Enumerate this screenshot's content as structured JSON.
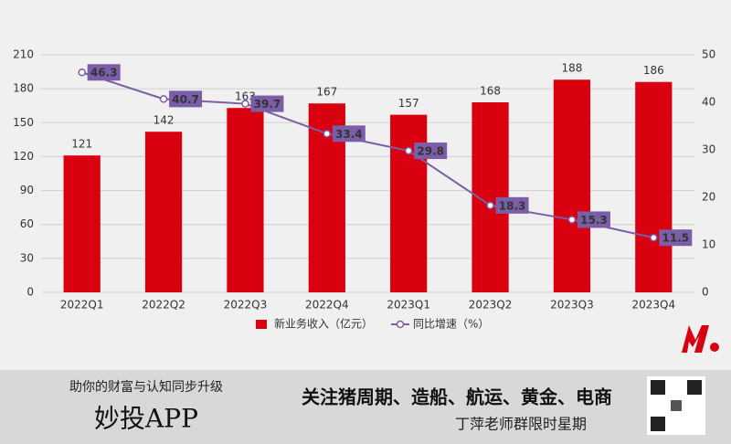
{
  "chart_data": {
    "type": "combo",
    "categories": [
      "2022Q1",
      "2022Q2",
      "2022Q3",
      "2022Q4",
      "2023Q1",
      "2023Q2",
      "2023Q3",
      "2023Q4"
    ],
    "series": [
      {
        "name": "新业务收入（亿元）",
        "type": "bar",
        "color": "#d9000f",
        "values": [
          121,
          142,
          163,
          167,
          157,
          168,
          188,
          186
        ]
      },
      {
        "name": "同比增速（%）",
        "type": "line",
        "axis": "y2",
        "color": "#7b5ea7",
        "values": [
          46.3,
          40.7,
          39.7,
          33.4,
          29.8,
          18.3,
          15.3,
          11.5
        ]
      }
    ],
    "ylim": [
      0,
      210
    ],
    "yticks": [
      0,
      30,
      60,
      90,
      120,
      150,
      180,
      210
    ],
    "y2lim": [
      0,
      50
    ],
    "y2ticks": [
      0,
      10,
      20,
      30,
      40,
      50
    ],
    "grid": true,
    "legend": "bottom"
  },
  "banner": {
    "slogan": "助你的财富与认知同步升级",
    "brand": "妙投APP",
    "headline": "关注猪周期、造船、航运、黄金、电商",
    "note": "丁萍老师群限时星期"
  }
}
